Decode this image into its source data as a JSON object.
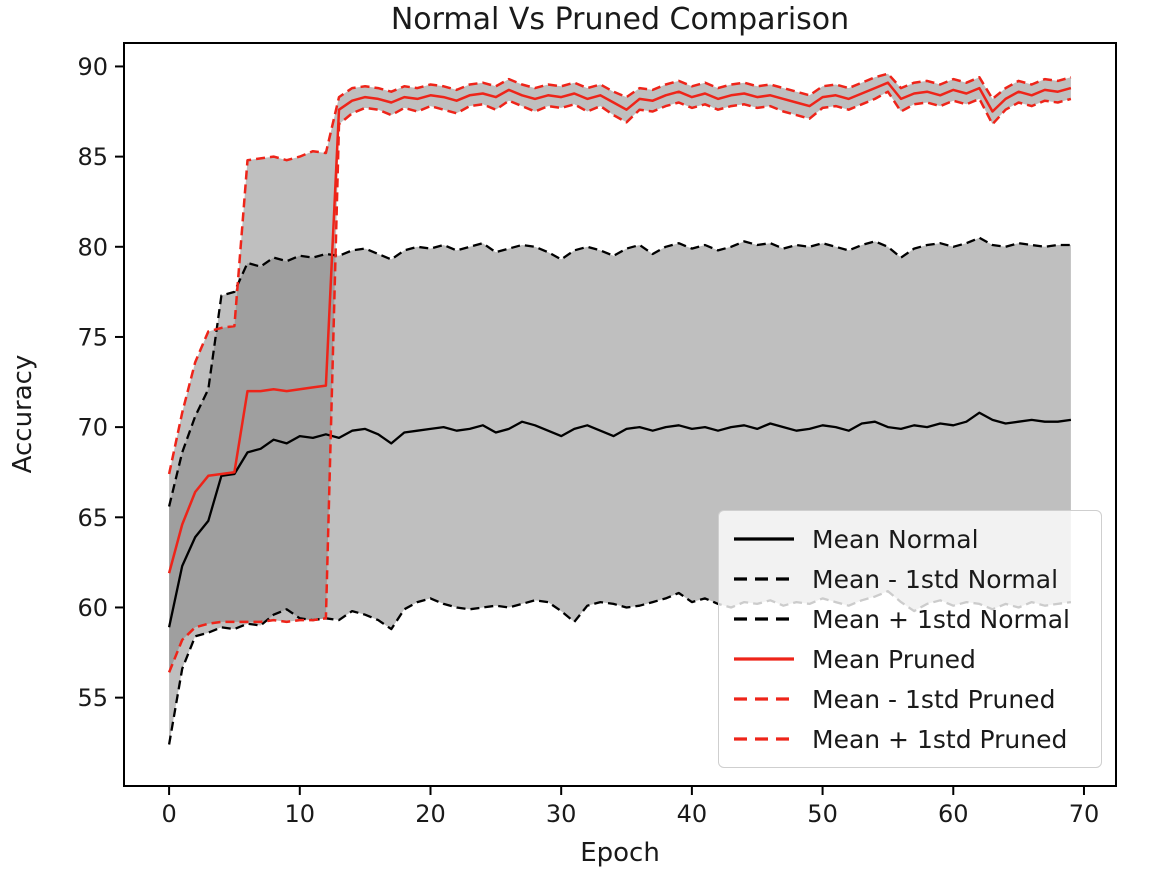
{
  "chart_data": {
    "type": "line",
    "title": "Normal Vs Pruned Comparison",
    "xlabel": "Epoch",
    "ylabel": "Accuracy",
    "x_ticks": [
      0,
      10,
      20,
      30,
      40,
      50,
      60,
      70
    ],
    "y_ticks": [
      55,
      60,
      65,
      70,
      75,
      80,
      85,
      90
    ],
    "x_range": [
      -3.45,
      72.45
    ],
    "y_range": [
      50.1,
      91.3
    ],
    "grid": false,
    "legend_position": "lower right",
    "colors": {
      "normal": "#000000",
      "pruned": "#ee2419",
      "band_fill": "rgba(128,128,128,0.5)",
      "legend_border": "#cfcfcf",
      "legend_background": "rgba(255,255,255,0.8)",
      "text": "#1a1a1a"
    },
    "x": [
      0,
      1,
      2,
      3,
      4,
      5,
      6,
      7,
      8,
      9,
      10,
      11,
      12,
      13,
      14,
      15,
      16,
      17,
      18,
      19,
      20,
      21,
      22,
      23,
      24,
      25,
      26,
      27,
      28,
      29,
      30,
      31,
      32,
      33,
      34,
      35,
      36,
      37,
      38,
      39,
      40,
      41,
      42,
      43,
      44,
      45,
      46,
      47,
      48,
      49,
      50,
      51,
      52,
      53,
      54,
      55,
      56,
      57,
      58,
      59,
      60,
      61,
      62,
      63,
      64,
      65,
      66,
      67,
      68,
      69
    ],
    "bands": [
      {
        "name": "normal-std-band",
        "lower_index": 1,
        "upper_index": 2
      },
      {
        "name": "pruned-std-band",
        "lower_index": 4,
        "upper_index": 5
      }
    ],
    "series": [
      {
        "name": "Mean Normal",
        "color": "#000000",
        "style": "solid",
        "width": 2.3,
        "values": [
          58.9,
          62.3,
          63.9,
          64.8,
          67.3,
          67.4,
          68.6,
          68.8,
          69.3,
          69.1,
          69.5,
          69.4,
          69.6,
          69.4,
          69.8,
          69.9,
          69.6,
          69.1,
          69.7,
          69.8,
          69.9,
          70.0,
          69.8,
          69.9,
          70.1,
          69.7,
          69.9,
          70.3,
          70.1,
          69.8,
          69.5,
          69.9,
          70.1,
          69.8,
          69.5,
          69.9,
          70.0,
          69.8,
          70.0,
          70.1,
          69.9,
          70.0,
          69.8,
          70.0,
          70.1,
          69.9,
          70.2,
          70.0,
          69.8,
          69.9,
          70.1,
          70.0,
          69.8,
          70.2,
          70.3,
          70.0,
          69.9,
          70.1,
          70.0,
          70.2,
          70.1,
          70.3,
          70.8,
          70.4,
          70.2,
          70.3,
          70.4,
          70.3,
          70.3,
          70.4
        ]
      },
      {
        "name": "Mean - 1std Normal",
        "color": "#000000",
        "style": "dashed",
        "width": 2.3,
        "values": [
          52.4,
          56.6,
          58.4,
          58.6,
          58.9,
          58.8,
          59.1,
          59.0,
          59.6,
          59.9,
          59.4,
          59.3,
          59.4,
          59.3,
          59.8,
          59.6,
          59.3,
          58.8,
          59.9,
          60.3,
          60.5,
          60.2,
          60.0,
          59.9,
          60.0,
          60.1,
          60.0,
          60.2,
          60.4,
          60.3,
          59.8,
          59.2,
          60.1,
          60.3,
          60.2,
          60.0,
          60.1,
          60.3,
          60.5,
          60.8,
          60.3,
          60.5,
          60.2,
          60.0,
          60.3,
          60.2,
          60.4,
          60.1,
          60.3,
          60.2,
          60.5,
          60.3,
          60.1,
          60.4,
          60.6,
          60.9,
          60.3,
          59.8,
          60.2,
          60.4,
          60.1,
          60.3,
          60.2,
          59.9,
          60.2,
          60.0,
          60.3,
          60.1,
          60.2,
          60.3
        ]
      },
      {
        "name": "Mean + 1std Normal",
        "color": "#000000",
        "style": "dashed",
        "width": 2.3,
        "values": [
          65.6,
          68.6,
          70.6,
          72.1,
          77.3,
          77.5,
          79.1,
          78.9,
          79.4,
          79.2,
          79.5,
          79.4,
          79.6,
          79.5,
          79.8,
          79.9,
          79.6,
          79.3,
          79.8,
          80.0,
          79.9,
          80.1,
          79.8,
          80.0,
          80.2,
          79.7,
          79.9,
          80.1,
          80.0,
          79.7,
          79.3,
          79.8,
          80.0,
          79.8,
          79.5,
          79.9,
          80.1,
          79.6,
          80.0,
          80.2,
          79.9,
          80.1,
          79.8,
          80.0,
          80.3,
          80.1,
          80.2,
          79.9,
          80.1,
          80.0,
          80.2,
          80.0,
          79.8,
          80.1,
          80.3,
          80.0,
          79.4,
          79.9,
          80.1,
          80.2,
          80.0,
          80.2,
          80.5,
          80.1,
          80.0,
          80.2,
          80.1,
          80.0,
          80.1,
          80.1
        ]
      },
      {
        "name": "Mean Pruned",
        "color": "#ee2419",
        "style": "solid",
        "width": 2.5,
        "values": [
          61.9,
          64.6,
          66.4,
          67.3,
          67.4,
          67.5,
          72.0,
          72.0,
          72.1,
          72.0,
          72.1,
          72.2,
          72.3,
          87.6,
          88.1,
          88.3,
          88.2,
          88.0,
          88.3,
          88.2,
          88.4,
          88.3,
          88.1,
          88.4,
          88.5,
          88.3,
          88.7,
          88.4,
          88.2,
          88.4,
          88.3,
          88.5,
          88.2,
          88.4,
          88.0,
          87.6,
          88.2,
          88.1,
          88.4,
          88.6,
          88.3,
          88.5,
          88.2,
          88.4,
          88.5,
          88.3,
          88.4,
          88.2,
          88.0,
          87.8,
          88.3,
          88.4,
          88.2,
          88.5,
          88.8,
          89.1,
          88.2,
          88.5,
          88.6,
          88.4,
          88.7,
          88.5,
          88.8,
          87.5,
          88.2,
          88.6,
          88.4,
          88.7,
          88.6,
          88.8
        ]
      },
      {
        "name": "Mean - 1std Pruned",
        "color": "#ee2419",
        "style": "dashed",
        "width": 2.5,
        "values": [
          56.4,
          58.2,
          58.9,
          59.1,
          59.2,
          59.2,
          59.2,
          59.2,
          59.3,
          59.2,
          59.3,
          59.3,
          59.4,
          86.8,
          87.4,
          87.7,
          87.6,
          87.3,
          87.7,
          87.5,
          87.8,
          87.6,
          87.4,
          87.8,
          87.9,
          87.6,
          88.1,
          87.8,
          87.5,
          87.8,
          87.7,
          87.9,
          87.5,
          87.8,
          87.3,
          86.9,
          87.6,
          87.5,
          87.8,
          88.0,
          87.7,
          87.9,
          87.6,
          87.8,
          87.9,
          87.7,
          87.8,
          87.5,
          87.3,
          87.1,
          87.7,
          87.8,
          87.6,
          87.9,
          88.2,
          88.6,
          87.5,
          87.9,
          88.0,
          87.8,
          88.1,
          87.9,
          88.2,
          86.8,
          87.6,
          88.0,
          87.8,
          88.1,
          88.0,
          88.2
        ]
      },
      {
        "name": "Mean + 1std Pruned",
        "color": "#ee2419",
        "style": "dashed",
        "width": 2.5,
        "values": [
          67.4,
          70.8,
          73.6,
          75.3,
          75.5,
          75.6,
          84.8,
          84.9,
          85.0,
          84.8,
          85.0,
          85.3,
          85.2,
          88.3,
          88.8,
          88.9,
          88.8,
          88.6,
          88.9,
          88.8,
          89.0,
          88.9,
          88.7,
          89.0,
          89.1,
          88.9,
          89.3,
          89.0,
          88.8,
          89.0,
          88.9,
          89.1,
          88.8,
          89.0,
          88.6,
          88.3,
          88.8,
          88.7,
          89.0,
          89.2,
          88.9,
          89.1,
          88.8,
          89.0,
          89.1,
          88.9,
          89.0,
          88.8,
          88.6,
          88.4,
          88.9,
          89.0,
          88.8,
          89.1,
          89.4,
          89.6,
          88.8,
          89.1,
          89.2,
          89.0,
          89.3,
          89.1,
          89.4,
          88.2,
          88.8,
          89.2,
          89.0,
          89.3,
          89.2,
          89.4
        ]
      }
    ]
  }
}
